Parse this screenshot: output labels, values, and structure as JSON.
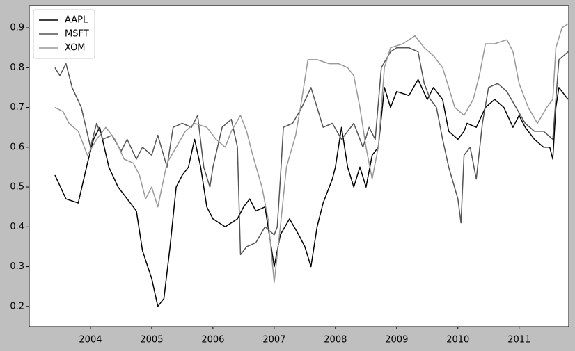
{
  "chart_data": {
    "type": "line",
    "xlim": [
      2003.0,
      2011.81
    ],
    "ylim": [
      0.149,
      0.956
    ],
    "xticks": [
      2004,
      2005,
      2006,
      2007,
      2008,
      2009,
      2010,
      2011
    ],
    "yticks": [
      0.2,
      0.3,
      0.4,
      0.5,
      0.6,
      0.7,
      0.8,
      0.9
    ],
    "legend": "upper left",
    "grid": false,
    "series": [
      {
        "name": "AAPL",
        "color": "#000000",
        "x": [
          2003.42,
          2003.6,
          2003.8,
          2003.95,
          2004.05,
          2004.15,
          2004.3,
          2004.45,
          2004.6,
          2004.75,
          2004.85,
          2005.0,
          2005.1,
          2005.2,
          2005.3,
          2005.4,
          2005.5,
          2005.6,
          2005.7,
          2005.8,
          2005.9,
          2006.0,
          2006.2,
          2006.4,
          2006.5,
          2006.6,
          2006.7,
          2006.85,
          2007.0,
          2007.1,
          2007.25,
          2007.4,
          2007.5,
          2007.6,
          2007.7,
          2007.8,
          2007.95,
          2008.0,
          2008.1,
          2008.2,
          2008.3,
          2008.4,
          2008.5,
          2008.6,
          2008.7,
          2008.8,
          2008.9,
          2009.0,
          2009.2,
          2009.35,
          2009.5,
          2009.6,
          2009.75,
          2009.85,
          2010.0,
          2010.1,
          2010.15,
          2010.3,
          2010.45,
          2010.6,
          2010.75,
          2010.9,
          2011.0,
          2011.1,
          2011.25,
          2011.4,
          2011.5,
          2011.55,
          2011.6,
          2011.65,
          2011.75,
          2011.8
        ],
        "values": [
          0.53,
          0.47,
          0.46,
          0.56,
          0.62,
          0.65,
          0.55,
          0.5,
          0.47,
          0.44,
          0.34,
          0.27,
          0.2,
          0.22,
          0.35,
          0.5,
          0.53,
          0.55,
          0.62,
          0.55,
          0.45,
          0.42,
          0.4,
          0.42,
          0.45,
          0.47,
          0.44,
          0.45,
          0.3,
          0.38,
          0.42,
          0.38,
          0.35,
          0.3,
          0.4,
          0.46,
          0.52,
          0.55,
          0.65,
          0.55,
          0.5,
          0.55,
          0.5,
          0.58,
          0.6,
          0.75,
          0.7,
          0.74,
          0.73,
          0.77,
          0.72,
          0.75,
          0.72,
          0.64,
          0.62,
          0.64,
          0.66,
          0.65,
          0.7,
          0.72,
          0.7,
          0.65,
          0.68,
          0.65,
          0.62,
          0.6,
          0.6,
          0.57,
          0.7,
          0.75,
          0.73,
          0.72
        ]
      },
      {
        "name": "MSFT",
        "color": "#555555",
        "x": [
          2003.42,
          2003.5,
          2003.6,
          2003.7,
          2003.85,
          2004.0,
          2004.1,
          2004.2,
          2004.35,
          2004.5,
          2004.6,
          2004.75,
          2004.85,
          2005.0,
          2005.1,
          2005.25,
          2005.35,
          2005.5,
          2005.65,
          2005.75,
          2005.85,
          2005.95,
          2006.0,
          2006.15,
          2006.3,
          2006.4,
          2006.45,
          2006.55,
          2006.7,
          2006.85,
          2007.0,
          2007.05,
          2007.1,
          2007.15,
          2007.3,
          2007.45,
          2007.6,
          2007.7,
          2007.8,
          2007.95,
          2008.1,
          2008.3,
          2008.45,
          2008.55,
          2008.65,
          2008.75,
          2008.9,
          2009.0,
          2009.2,
          2009.35,
          2009.45,
          2009.55,
          2009.65,
          2009.75,
          2009.85,
          2010.0,
          2010.05,
          2010.1,
          2010.2,
          2010.3,
          2010.4,
          2010.5,
          2010.65,
          2010.8,
          2010.95,
          2011.1,
          2011.25,
          2011.4,
          2011.55,
          2011.65,
          2011.8
        ],
        "values": [
          0.8,
          0.78,
          0.81,
          0.75,
          0.7,
          0.6,
          0.66,
          0.62,
          0.63,
          0.59,
          0.62,
          0.57,
          0.6,
          0.58,
          0.63,
          0.55,
          0.65,
          0.66,
          0.65,
          0.68,
          0.55,
          0.5,
          0.55,
          0.65,
          0.67,
          0.6,
          0.33,
          0.35,
          0.36,
          0.4,
          0.38,
          0.4,
          0.52,
          0.65,
          0.66,
          0.7,
          0.75,
          0.7,
          0.65,
          0.66,
          0.62,
          0.66,
          0.6,
          0.65,
          0.62,
          0.8,
          0.84,
          0.85,
          0.85,
          0.84,
          0.76,
          0.72,
          0.7,
          0.62,
          0.55,
          0.47,
          0.41,
          0.58,
          0.6,
          0.52,
          0.66,
          0.75,
          0.76,
          0.74,
          0.7,
          0.66,
          0.64,
          0.64,
          0.62,
          0.82,
          0.84
        ]
      },
      {
        "name": "XOM",
        "color": "#999999",
        "x": [
          2003.42,
          2003.55,
          2003.65,
          2003.8,
          2003.95,
          2004.1,
          2004.25,
          2004.4,
          2004.55,
          2004.7,
          2004.8,
          2004.9,
          2005.0,
          2005.1,
          2005.25,
          2005.4,
          2005.55,
          2005.7,
          2005.9,
          2006.05,
          2006.2,
          2006.3,
          2006.45,
          2006.55,
          2006.65,
          2006.8,
          2006.9,
          2007.0,
          2007.1,
          2007.2,
          2007.35,
          2007.45,
          2007.55,
          2007.7,
          2007.9,
          2008.05,
          2008.2,
          2008.3,
          2008.4,
          2008.5,
          2008.6,
          2008.7,
          2008.8,
          2008.9,
          2009.1,
          2009.3,
          2009.45,
          2009.6,
          2009.75,
          2009.85,
          2009.95,
          2010.1,
          2010.25,
          2010.35,
          2010.45,
          2010.6,
          2010.8,
          2010.9,
          2011.0,
          2011.15,
          2011.3,
          2011.45,
          2011.55,
          2011.6,
          2011.7,
          2011.8
        ],
        "values": [
          0.7,
          0.69,
          0.66,
          0.64,
          0.58,
          0.62,
          0.65,
          0.62,
          0.57,
          0.56,
          0.53,
          0.47,
          0.5,
          0.45,
          0.56,
          0.6,
          0.64,
          0.66,
          0.65,
          0.62,
          0.6,
          0.64,
          0.68,
          0.64,
          0.58,
          0.5,
          0.42,
          0.26,
          0.4,
          0.55,
          0.63,
          0.72,
          0.82,
          0.82,
          0.81,
          0.81,
          0.8,
          0.78,
          0.7,
          0.6,
          0.52,
          0.6,
          0.8,
          0.85,
          0.86,
          0.88,
          0.85,
          0.83,
          0.8,
          0.75,
          0.7,
          0.68,
          0.72,
          0.78,
          0.86,
          0.86,
          0.87,
          0.84,
          0.76,
          0.7,
          0.66,
          0.7,
          0.72,
          0.85,
          0.9,
          0.91
        ]
      }
    ]
  }
}
